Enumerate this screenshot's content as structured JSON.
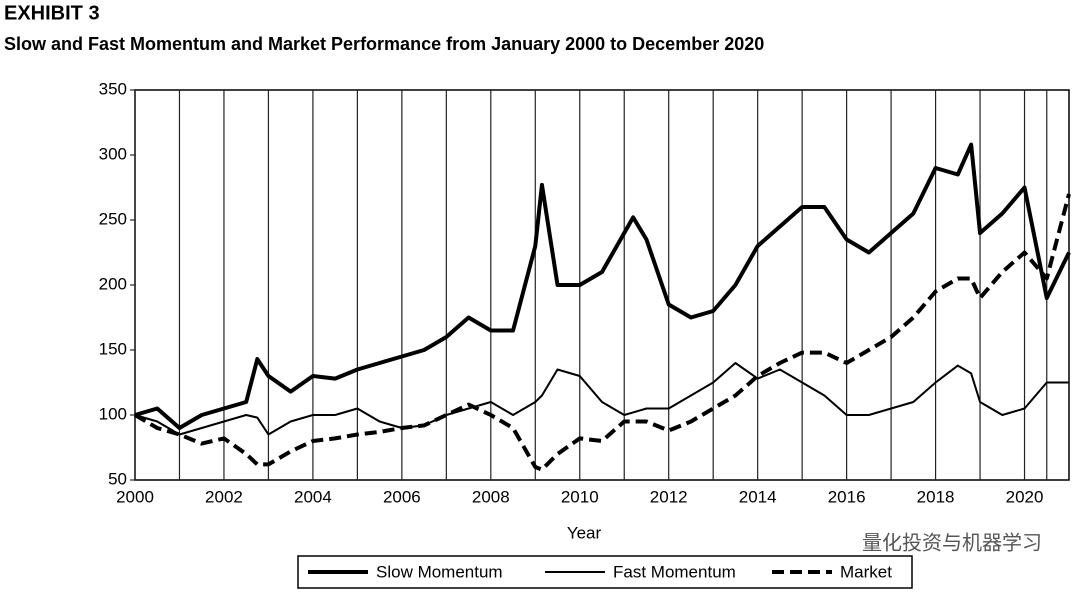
{
  "chart_data": {
    "type": "line",
    "title": "EXHIBIT 3",
    "subtitle": "Slow and Fast Momentum and Market Performance from January 2000 to December 2020",
    "x_label": "Year",
    "watermark": "量化投资与机器学习",
    "x": [
      2000,
      2000.5,
      2001,
      2001.5,
      2002,
      2002.5,
      2002.75,
      2003,
      2003.5,
      2004,
      2004.5,
      2005,
      2005.5,
      2006,
      2006.5,
      2007,
      2007.5,
      2008,
      2008.5,
      2009,
      2009.15,
      2009.5,
      2010,
      2010.5,
      2011,
      2011.2,
      2011.5,
      2012,
      2012.5,
      2013,
      2013.5,
      2014,
      2014.5,
      2015,
      2015.5,
      2016,
      2016.5,
      2017,
      2017.5,
      2018,
      2018.5,
      2018.8,
      2019,
      2019.5,
      2020,
      2020.5,
      2021
    ],
    "series": [
      {
        "name": "Slow Momentum",
        "color": "#000000",
        "style": "thick",
        "values": [
          100,
          105,
          90,
          100,
          105,
          110,
          143,
          130,
          118,
          130,
          128,
          135,
          140,
          145,
          150,
          160,
          175,
          165,
          165,
          230,
          277,
          200,
          200,
          210,
          240,
          252,
          235,
          185,
          175,
          180,
          200,
          230,
          245,
          260,
          260,
          235,
          225,
          240,
          255,
          290,
          285,
          308,
          240,
          255,
          275,
          190,
          225
        ]
      },
      {
        "name": "Fast Momentum",
        "color": "#000000",
        "style": "thin",
        "values": [
          100,
          95,
          85,
          90,
          95,
          100,
          98,
          85,
          95,
          100,
          100,
          105,
          95,
          90,
          92,
          100,
          105,
          110,
          100,
          110,
          115,
          135,
          130,
          110,
          100,
          102,
          105,
          105,
          115,
          125,
          140,
          128,
          135,
          125,
          115,
          100,
          100,
          105,
          110,
          125,
          138,
          132,
          110,
          100,
          105,
          125,
          125
        ]
      },
      {
        "name": "Market",
        "color": "#000000",
        "style": "dashed",
        "values": [
          100,
          90,
          85,
          78,
          82,
          70,
          62,
          62,
          72,
          80,
          82,
          85,
          87,
          90,
          92,
          100,
          108,
          100,
          90,
          60,
          58,
          70,
          82,
          80,
          95,
          95,
          95,
          88,
          95,
          105,
          115,
          130,
          140,
          148,
          148,
          140,
          150,
          160,
          175,
          195,
          205,
          205,
          190,
          210,
          225,
          205,
          270
        ]
      }
    ],
    "xlim": [
      2000,
      2021
    ],
    "xticks": [
      2000,
      2002,
      2004,
      2006,
      2008,
      2010,
      2012,
      2014,
      2016,
      2018,
      2020
    ],
    "ylim": [
      50,
      350
    ],
    "yticks": [
      50,
      100,
      150,
      200,
      250,
      300,
      350
    ],
    "grid": true,
    "legend": "bottom"
  }
}
